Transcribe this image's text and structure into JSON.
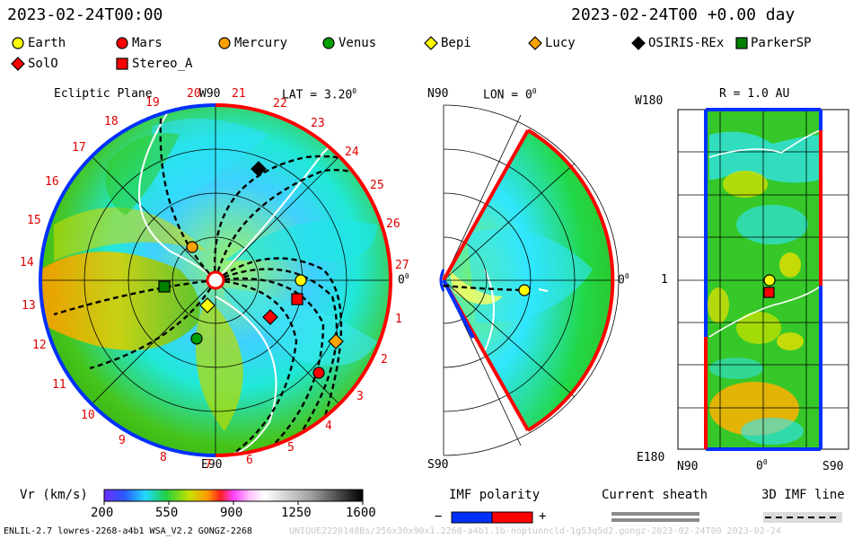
{
  "header": {
    "date_left": "2023-02-24T00:00",
    "date_right": "2023-02-24T00 +0.00 day"
  },
  "legend": [
    {
      "name": "Earth",
      "marker": "circle",
      "color": "#ffff00"
    },
    {
      "name": "Mars",
      "marker": "circle",
      "color": "#ff0000"
    },
    {
      "name": "Mercury",
      "marker": "circle",
      "color": "#ff9f00"
    },
    {
      "name": "Venus",
      "marker": "circle",
      "color": "#00a000"
    },
    {
      "name": "Bepi",
      "marker": "diamond",
      "color": "#ffff00"
    },
    {
      "name": "Lucy",
      "marker": "diamond",
      "color": "#ffa500"
    },
    {
      "name": "OSIRIS-REx",
      "marker": "diamond",
      "color": "#000000"
    },
    {
      "name": "ParkerSP",
      "marker": "square",
      "color": "#008000"
    },
    {
      "name": "SolO",
      "marker": "diamond",
      "color": "#ff0000"
    },
    {
      "name": "Stereo_A",
      "marker": "square",
      "color": "#ff0000"
    }
  ],
  "panel1": {
    "title": "Ecliptic Plane",
    "top_label": "W90",
    "lat_label": "LAT = 3.20",
    "deg_sup": "0",
    "zero_label": "0",
    "bottom_label": "E90",
    "rotations": [
      "1",
      "2",
      "3",
      "4",
      "5",
      "6",
      "7",
      "8",
      "9",
      "10",
      "11",
      "12",
      "13",
      "14",
      "15",
      "16",
      "17",
      "18",
      "19",
      "20",
      "21",
      "22",
      "23",
      "24",
      "25",
      "26",
      "27"
    ]
  },
  "panel2": {
    "title": "LON = 0",
    "deg_sup": "0",
    "top_label": "N90",
    "bottom_label": "S90",
    "right_label": "0"
  },
  "panel3": {
    "title": "R = 1.0 AU",
    "top_left": "W180",
    "middle_left": "1",
    "bottom_left": "E180",
    "x_left": "N90",
    "x_mid": "0",
    "x_right": "S90",
    "deg_sup": "0"
  },
  "colorbar": {
    "label": "Vr (km/s)",
    "ticks": [
      "200",
      "550",
      "900",
      "1250",
      "1600"
    ]
  },
  "imf": {
    "label": "IMF polarity",
    "minus": "−",
    "plus": "+"
  },
  "sheath": {
    "label": "Current sheath"
  },
  "imfline": {
    "label": "3D IMF line"
  },
  "footer": {
    "left": "ENLIL-2.7 lowres-2268-a4b1 WSA_V2.2 GONGZ-2268",
    "right": "UNIQUE2220148Bs/256x30x90x1.2268-a4b1.1b-noptunncld-1g53q5d2.gongz-2023-02-24T00   2023-02-24"
  },
  "colors": {
    "red": "#e00000",
    "blue": "#0030ff",
    "green": "#2faa10",
    "cyan": "#20e8e8",
    "orange": "#ff9a00",
    "yellow": "#e7e000"
  }
}
